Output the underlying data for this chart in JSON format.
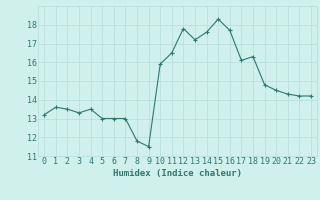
{
  "x": [
    0,
    1,
    2,
    3,
    4,
    5,
    6,
    7,
    8,
    9,
    10,
    11,
    12,
    13,
    14,
    15,
    16,
    17,
    18,
    19,
    20,
    21,
    22,
    23
  ],
  "y": [
    13.2,
    13.6,
    13.5,
    13.3,
    13.5,
    13.0,
    13.0,
    13.0,
    11.8,
    11.5,
    15.9,
    16.5,
    17.8,
    17.2,
    17.6,
    18.3,
    17.7,
    16.1,
    16.3,
    14.8,
    14.5,
    14.3,
    14.2,
    14.2
  ],
  "xlabel": "Humidex (Indice chaleur)",
  "ylim": [
    11,
    19
  ],
  "xlim": [
    -0.5,
    23.5
  ],
  "yticks": [
    11,
    12,
    13,
    14,
    15,
    16,
    17,
    18
  ],
  "xtick_labels": [
    "0",
    "1",
    "2",
    "3",
    "4",
    "5",
    "6",
    "7",
    "8",
    "9",
    "10",
    "11",
    "12",
    "13",
    "14",
    "15",
    "16",
    "17",
    "18",
    "19",
    "20",
    "21",
    "22",
    "23"
  ],
  "line_color": "#2a7a6e",
  "bg_color": "#cff0eb",
  "grid_color": "#b8ddd8",
  "font_color": "#2a7a6e",
  "label_fontsize": 6.5,
  "tick_fontsize": 6.0
}
